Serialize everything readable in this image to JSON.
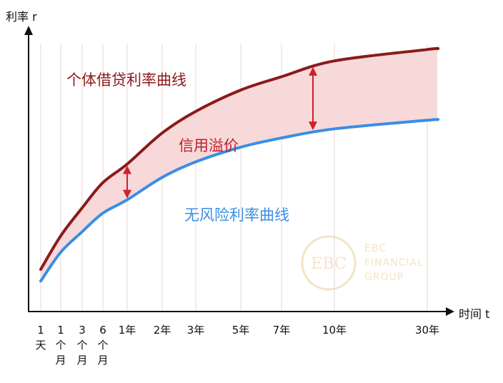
{
  "chart_data": {
    "type": "line",
    "xlabel": "时间 t",
    "ylabel": "利率 r",
    "x_ticks": [
      "1天",
      "1个月",
      "3个月",
      "6个月",
      "1年",
      "2年",
      "3年",
      "5年",
      "7年",
      "10年",
      "30年"
    ],
    "series": [
      {
        "name": "个体借贷利率曲线",
        "color": "#8b1a1a",
        "values": [
          0.152,
          0.273,
          0.374,
          0.465,
          0.532,
          0.644,
          0.722,
          0.799,
          0.847,
          0.904,
          0.945
        ]
      },
      {
        "name": "无风险利率曲线",
        "color": "#3a8ee6",
        "values": [
          0.11,
          0.214,
          0.288,
          0.355,
          0.403,
          0.484,
          0.54,
          0.593,
          0.626,
          0.659,
          0.69
        ]
      }
    ],
    "band_label": "信用溢价",
    "band_color": "#f7d9da",
    "arrow_color": "#d0202a",
    "grid": true,
    "y_range": [
      0,
      1
    ]
  },
  "watermark": {
    "logo_text": "EBC",
    "line1": "EBC",
    "line2": "FINANCIAL",
    "line3": "GROUP",
    "color": "#e8cf98"
  }
}
